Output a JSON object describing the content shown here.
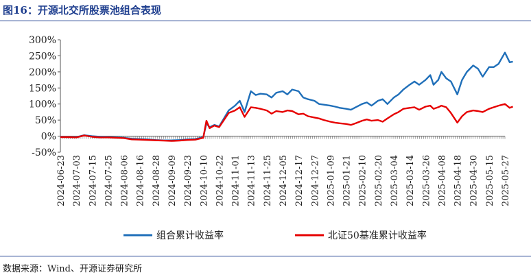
{
  "figure": {
    "title": "图16：开源北交所股票池组合表现",
    "source": "数据来源：Wind、开源证券研究所"
  },
  "chart_data": {
    "type": "line",
    "title": "开源北交所股票池组合表现",
    "y_unit": "%",
    "ylim": [
      -50,
      300
    ],
    "yticks": [
      -50,
      0,
      50,
      100,
      150,
      200,
      250,
      300
    ],
    "ytick_labels": [
      "-50%",
      "0%",
      "50%",
      "100%",
      "150%",
      "200%",
      "250%",
      "300%"
    ],
    "x_tick_labels": [
      "2024-06-23",
      "2024-07-03",
      "2024-07-15",
      "2024-07-25",
      "2024-08-06",
      "2024-08-16",
      "2024-08-28",
      "2024-09-09",
      "2024-09-23",
      "2024-10-10",
      "2024-10-22",
      "2024-11-01",
      "2024-11-13",
      "2024-11-25",
      "2024-12-05",
      "2024-12-17",
      "2024-12-27",
      "2025-01-09",
      "2025-01-21",
      "2025-02-10",
      "2025-02-20",
      "2025-03-04",
      "2025-03-14",
      "2025-03-26",
      "2025-04-08",
      "2025-04-18",
      "2025-04-30",
      "2025-05-15",
      "2025-05-27"
    ],
    "series": [
      {
        "name": "组合累计收益率",
        "color": "#1f6fb9",
        "x": [
          0,
          0.5,
          1,
          1.5,
          2,
          2.5,
          3,
          3.5,
          4,
          4.5,
          5,
          5.5,
          6,
          6.5,
          7,
          7.5,
          8,
          8.5,
          9,
          9.2,
          9.4,
          9.7,
          10,
          10.3,
          10.6,
          11,
          11.3,
          11.6,
          12,
          12.3,
          12.6,
          13,
          13.3,
          13.6,
          14,
          14.3,
          14.6,
          15,
          15.3,
          15.6,
          16,
          16.3,
          16.6,
          17,
          17.3,
          17.6,
          18,
          18.3,
          18.6,
          19,
          19.3,
          19.6,
          20,
          20.3,
          20.6,
          21,
          21.3,
          21.6,
          22,
          22.3,
          22.6,
          23,
          23.3,
          23.5,
          23.8,
          24,
          24.3,
          24.6,
          25,
          25.3,
          25.6,
          26,
          26.3,
          26.6,
          27,
          27.3,
          27.6,
          28,
          28.3,
          28.5
        ],
        "values": [
          -2,
          -3,
          -3,
          3,
          0,
          -2,
          -3,
          -4,
          -5,
          -8,
          -9,
          -10,
          -12,
          -13,
          -13,
          -12,
          -10,
          -9,
          -3,
          40,
          28,
          35,
          30,
          55,
          80,
          95,
          110,
          75,
          140,
          128,
          132,
          130,
          120,
          135,
          140,
          130,
          145,
          140,
          120,
          115,
          110,
          100,
          98,
          95,
          92,
          88,
          85,
          82,
          90,
          100,
          105,
          95,
          110,
          115,
          100,
          120,
          130,
          145,
          160,
          170,
          160,
          175,
          190,
          160,
          175,
          200,
          180,
          170,
          130,
          175,
          200,
          220,
          210,
          185,
          215,
          215,
          225,
          260,
          230,
          232
        ]
      },
      {
        "name": "北证50基准累计收益率",
        "color": "#e60000",
        "x": [
          0,
          0.5,
          1,
          1.5,
          2,
          2.5,
          3,
          3.5,
          4,
          4.5,
          5,
          5.5,
          6,
          6.5,
          7,
          7.5,
          8,
          8.5,
          9,
          9.2,
          9.4,
          9.7,
          10,
          10.3,
          10.6,
          11,
          11.3,
          11.6,
          12,
          12.3,
          12.6,
          13,
          13.3,
          13.6,
          14,
          14.3,
          14.6,
          15,
          15.3,
          15.6,
          16,
          16.3,
          16.6,
          17,
          17.3,
          17.6,
          18,
          18.3,
          18.6,
          19,
          19.3,
          19.6,
          20,
          20.3,
          20.6,
          21,
          21.3,
          21.6,
          22,
          22.3,
          22.6,
          23,
          23.3,
          23.5,
          23.8,
          24,
          24.3,
          24.6,
          25,
          25.3,
          25.6,
          26,
          26.3,
          26.6,
          27,
          27.3,
          27.6,
          28,
          28.3,
          28.5
        ],
        "values": [
          -3,
          -3,
          -4,
          2,
          -2,
          -4,
          -4,
          -5,
          -6,
          -10,
          -11,
          -12,
          -13,
          -14,
          -15,
          -14,
          -12,
          -11,
          -5,
          48,
          25,
          33,
          28,
          50,
          72,
          80,
          90,
          60,
          90,
          88,
          85,
          80,
          70,
          78,
          75,
          80,
          78,
          68,
          70,
          62,
          58,
          55,
          50,
          45,
          42,
          40,
          38,
          35,
          40,
          48,
          52,
          48,
          50,
          45,
          55,
          68,
          75,
          85,
          88,
          90,
          82,
          92,
          95,
          85,
          90,
          95,
          90,
          72,
          42,
          62,
          75,
          80,
          78,
          75,
          85,
          90,
          95,
          100,
          88,
          92
        ]
      }
    ]
  }
}
